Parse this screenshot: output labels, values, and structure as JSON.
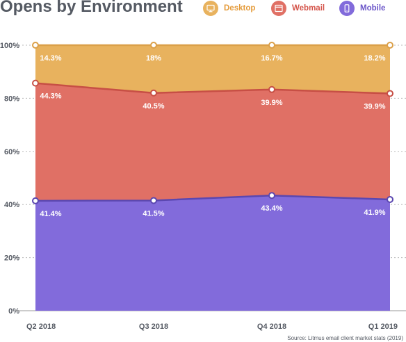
{
  "colors": {
    "desktop": "#e8b25e",
    "webmail": "#e07065",
    "mobile": "#826bdb",
    "desktop_line": "#dba049",
    "webmail_line": "#c74f45",
    "mobile_line": "#5b47b0",
    "title": "#555a63",
    "axis": "#555a63"
  },
  "legend": {
    "items": [
      {
        "label": "Desktop",
        "icon": "monitor-icon"
      },
      {
        "label": "Webmail",
        "icon": "browser-window-icon"
      },
      {
        "label": "Mobile",
        "icon": "phone-icon"
      }
    ]
  },
  "source": "Source: Litmus email client market stats (2019)",
  "chart_data": {
    "type": "area",
    "title": "Opens by Environment",
    "stacked": true,
    "categories": [
      "Q2 2018",
      "Q3 2018",
      "Q4 2018",
      "Q1 2019"
    ],
    "series": [
      {
        "name": "Mobile",
        "values": [
          41.4,
          41.5,
          43.4,
          41.9
        ],
        "labels": [
          "41.4%",
          "41.5%",
          "43.4%",
          "41.9%"
        ]
      },
      {
        "name": "Webmail",
        "values": [
          44.3,
          40.5,
          39.9,
          39.9
        ],
        "labels": [
          "44.3%",
          "40.5%",
          "39.9%",
          "39.9%"
        ]
      },
      {
        "name": "Desktop",
        "values": [
          14.3,
          18,
          16.7,
          18.2
        ],
        "labels": [
          "14.3%",
          "18%",
          "16.7%",
          "18.2%"
        ]
      }
    ],
    "yticks": [
      "0%",
      "20%",
      "40%",
      "60%",
      "80%",
      "100%"
    ],
    "ylim": [
      0,
      100
    ],
    "grid": true,
    "legend_position": "top-right"
  }
}
